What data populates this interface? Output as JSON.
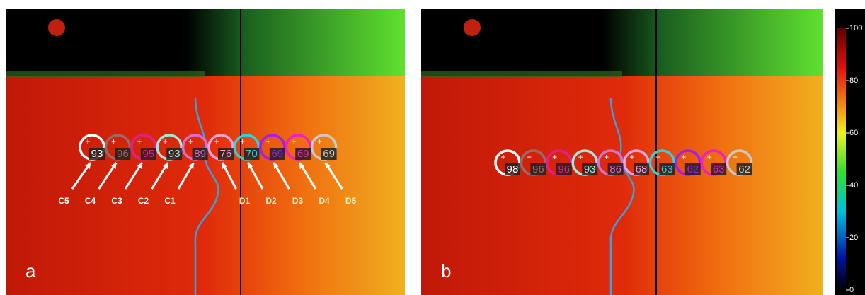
{
  "panels": [
    {
      "label": "a",
      "rois": [
        {
          "value": 93,
          "color": "#ffffff",
          "tag": "C5"
        },
        {
          "value": 96,
          "color": "#9a6a6a",
          "tag": "C4"
        },
        {
          "value": 95,
          "color": "#e0208a",
          "tag": "C3"
        },
        {
          "value": 93,
          "color": "#9fe8e0",
          "tag": "C2"
        },
        {
          "value": 89,
          "color": "#d070d0",
          "tag": "C1"
        },
        {
          "value": 76,
          "color": "#f0a0e0",
          "tag": "D1"
        },
        {
          "value": 70,
          "color": "#30d0e0",
          "tag": "D2"
        },
        {
          "value": 69,
          "color": "#a020f0",
          "tag": "D3"
        },
        {
          "value": 69,
          "color": "#f020c0",
          "tag": "D4"
        },
        {
          "value": 69,
          "color": "#c8c8c8",
          "tag": "D5"
        }
      ]
    },
    {
      "label": "b",
      "rois": [
        {
          "value": 98,
          "color": "#ffffff"
        },
        {
          "value": 96,
          "color": "#9a6a6a"
        },
        {
          "value": 96,
          "color": "#e0208a"
        },
        {
          "value": 93,
          "color": "#9fe8e0"
        },
        {
          "value": 86,
          "color": "#d070d0"
        },
        {
          "value": 68,
          "color": "#f0a0e0"
        },
        {
          "value": 63,
          "color": "#30d0e0"
        },
        {
          "value": 62,
          "color": "#a020f0"
        },
        {
          "value": 63,
          "color": "#f020c0"
        },
        {
          "value": 62,
          "color": "#c8c8c8"
        }
      ]
    }
  ],
  "colorbar": {
    "ticks": [
      0,
      20,
      40,
      60,
      80,
      100
    ],
    "range": [
      0,
      100
    ]
  }
}
